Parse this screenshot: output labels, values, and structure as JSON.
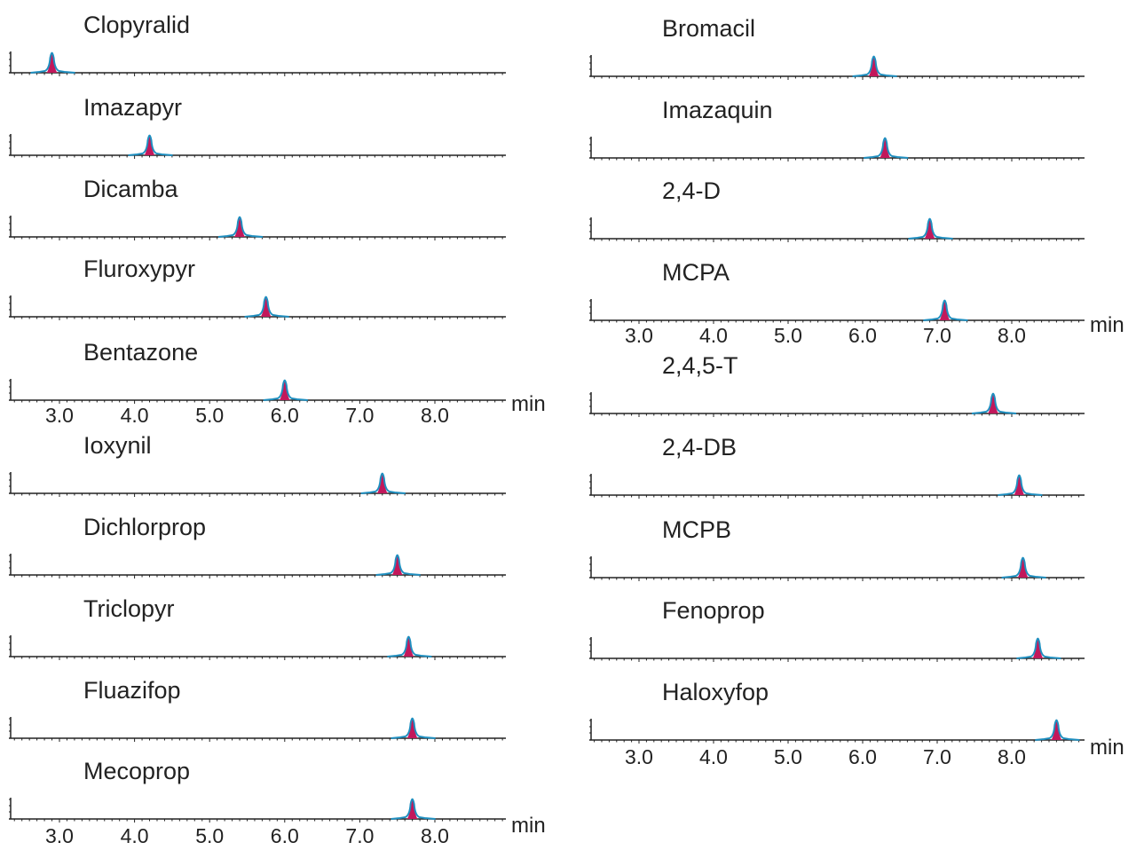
{
  "chart_data": {
    "type": "line",
    "title": "",
    "xlabel": "min",
    "ylabel": "",
    "x_ticks": [
      "3.0",
      "4.0",
      "5.0",
      "6.0",
      "7.0",
      "8.0"
    ],
    "x_tick_values": [
      3.0,
      4.0,
      5.0,
      6.0,
      7.0,
      8.0
    ],
    "xlim": [
      2.35,
      9.1
    ],
    "legend": "none",
    "colors": {
      "trace": "#1f8fc0",
      "peak_fill": "#c2185b",
      "axis": "#222222",
      "text": "#222222"
    },
    "left_column": {
      "traces": [
        {
          "name": "Clopyralid",
          "retention_time": 2.9
        },
        {
          "name": "Imazapyr",
          "retention_time": 4.2
        },
        {
          "name": "Dicamba",
          "retention_time": 5.4
        },
        {
          "name": "Fluroxypyr",
          "retention_time": 5.75
        },
        {
          "name": "Bentazone",
          "retention_time": 6.0
        },
        {
          "name": "Ioxynil",
          "retention_time": 7.3
        },
        {
          "name": "Dichlorprop",
          "retention_time": 7.5
        },
        {
          "name": "Triclopyr",
          "retention_time": 7.65
        },
        {
          "name": "Fluazifop",
          "retention_time": 7.7
        },
        {
          "name": "Mecoprop",
          "retention_time": 7.7
        }
      ]
    },
    "right_column": {
      "traces": [
        {
          "name": "Bromacil",
          "retention_time": 6.15
        },
        {
          "name": "Imazaquin",
          "retention_time": 6.3
        },
        {
          "name": "2,4-D",
          "retention_time": 6.9
        },
        {
          "name": "MCPA",
          "retention_time": 7.1
        },
        {
          "name": "2,4,5-T",
          "retention_time": 7.75
        },
        {
          "name": "2,4-DB",
          "retention_time": 8.1
        },
        {
          "name": "MCPB",
          "retention_time": 8.15
        },
        {
          "name": "Fenoprop",
          "retention_time": 8.35
        },
        {
          "name": "Haloxyfop",
          "retention_time": 8.6
        }
      ]
    }
  }
}
